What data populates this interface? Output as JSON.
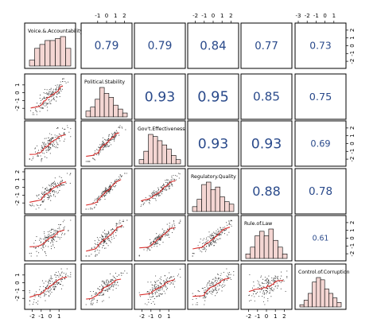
{
  "chart_data": {
    "type": "scatter-matrix",
    "variables": [
      "Voice.&.Accountability",
      "Political.Stability",
      "Gov't.Effectiveness",
      "Regulatory.Quality",
      "Rule.of.Law",
      "Control.of.Corruption"
    ],
    "correlations": [
      {
        "row": 0,
        "col": 1,
        "value": "0.79"
      },
      {
        "row": 0,
        "col": 2,
        "value": "0.79"
      },
      {
        "row": 0,
        "col": 3,
        "value": "0.84"
      },
      {
        "row": 0,
        "col": 4,
        "value": "0.77"
      },
      {
        "row": 0,
        "col": 5,
        "value": "0.73"
      },
      {
        "row": 1,
        "col": 2,
        "value": "0.93"
      },
      {
        "row": 1,
        "col": 3,
        "value": "0.95"
      },
      {
        "row": 1,
        "col": 4,
        "value": "0.85"
      },
      {
        "row": 1,
        "col": 5,
        "value": "0.75"
      },
      {
        "row": 2,
        "col": 3,
        "value": "0.93"
      },
      {
        "row": 2,
        "col": 4,
        "value": "0.93"
      },
      {
        "row": 2,
        "col": 5,
        "value": "0.69"
      },
      {
        "row": 3,
        "col": 4,
        "value": "0.88"
      },
      {
        "row": 3,
        "col": 5,
        "value": "0.78"
      },
      {
        "row": 4,
        "col": 5,
        "value": "0.61"
      }
    ],
    "histograms": [
      {
        "var": "Voice.&.Accountability",
        "bins": [
          -2.5,
          -2,
          -1.5,
          -1,
          -0.5,
          0,
          0.5,
          1,
          1.5
        ],
        "counts": [
          3,
          9,
          11,
          13,
          13,
          14,
          15,
          9
        ]
      },
      {
        "var": "Political.Stability",
        "bins": [
          -3,
          -2.5,
          -2,
          -1.5,
          -1,
          -0.5,
          0,
          0.5,
          1,
          1.5
        ],
        "counts": [
          3,
          5,
          9,
          15,
          12,
          10,
          6,
          4,
          2
        ]
      },
      {
        "var": "Gov't.Effectiveness",
        "bins": [
          -2,
          -1.5,
          -1,
          -0.5,
          0,
          0.5,
          1,
          1.5,
          2,
          2.5
        ],
        "counts": [
          2,
          6,
          14,
          13,
          11,
          9,
          7,
          4,
          2
        ]
      },
      {
        "var": "Regulatory.Quality",
        "bins": [
          -2.5,
          -2,
          -1.5,
          -1,
          -0.5,
          0,
          0.5,
          1,
          1.5,
          2
        ],
        "counts": [
          2,
          5,
          11,
          12,
          9,
          10,
          6,
          4,
          3
        ]
      },
      {
        "var": "Rule.of.Law",
        "bins": [
          -2.5,
          -2,
          -1.5,
          -1,
          -0.5,
          0,
          0.5,
          1,
          1.5,
          2
        ],
        "counts": [
          2,
          5,
          10,
          12,
          10,
          13,
          8,
          5,
          2
        ]
      },
      {
        "var": "Control.of.Corruption",
        "bins": [
          -2.5,
          -2,
          -1.5,
          -1,
          -0.5,
          0,
          0.5,
          1,
          1.5,
          2,
          2.5
        ],
        "counts": [
          1,
          3,
          6,
          11,
          13,
          12,
          8,
          6,
          4,
          2
        ]
      }
    ],
    "ticks": {
      "top": [
        {
          "col": 1,
          "range": [
            -2.5,
            2.5
          ],
          "ticks": [
            -1,
            0,
            1,
            2
          ]
        },
        {
          "col": 3,
          "range": [
            -2.5,
            2.5
          ],
          "ticks": [
            -2,
            -1,
            0,
            1,
            2
          ]
        },
        {
          "col": 5,
          "range": [
            -3,
            2
          ],
          "ticks": [
            -3,
            -2,
            -1,
            0,
            1
          ]
        }
      ],
      "bottom": [
        {
          "col": 0,
          "range": [
            -2.5,
            2.5
          ],
          "ticks": [
            -2,
            -1,
            0,
            1
          ]
        },
        {
          "col": 2,
          "range": [
            -2.5,
            2.5
          ],
          "ticks": [
            -2,
            -1,
            0,
            1
          ]
        },
        {
          "col": 4,
          "range": [
            -2.5,
            2.5
          ],
          "ticks": [
            -2,
            -1,
            0,
            1,
            2
          ]
        }
      ],
      "left": [
        {
          "row": 1,
          "range": [
            -3,
            2
          ],
          "ticks": [
            -2,
            -1,
            0,
            1
          ]
        },
        {
          "row": 3,
          "range": [
            -3,
            2
          ],
          "ticks": [
            -2,
            -1,
            0,
            1,
            2
          ]
        },
        {
          "row": 5,
          "range": [
            -3,
            2
          ],
          "ticks": [
            -2,
            -1,
            0,
            1
          ]
        }
      ],
      "right": [
        {
          "row": 0,
          "range": [
            -2.5,
            2.5
          ],
          "ticks": [
            -2,
            -1,
            0,
            1,
            2
          ]
        },
        {
          "row": 2,
          "range": [
            -2.5,
            2.5
          ],
          "ticks": [
            -2,
            -1,
            0,
            1,
            2
          ]
        },
        {
          "row": 4,
          "range": [
            -2.5,
            2.5
          ],
          "ticks": [
            -2,
            -1,
            0,
            1,
            2
          ]
        }
      ]
    },
    "colors": {
      "hist_fill": "#f4d6d3",
      "scatter_points": "#333333",
      "smooth_line": "#d9302e",
      "corr_text": "#2a4a8b",
      "frame": "#000000"
    }
  }
}
